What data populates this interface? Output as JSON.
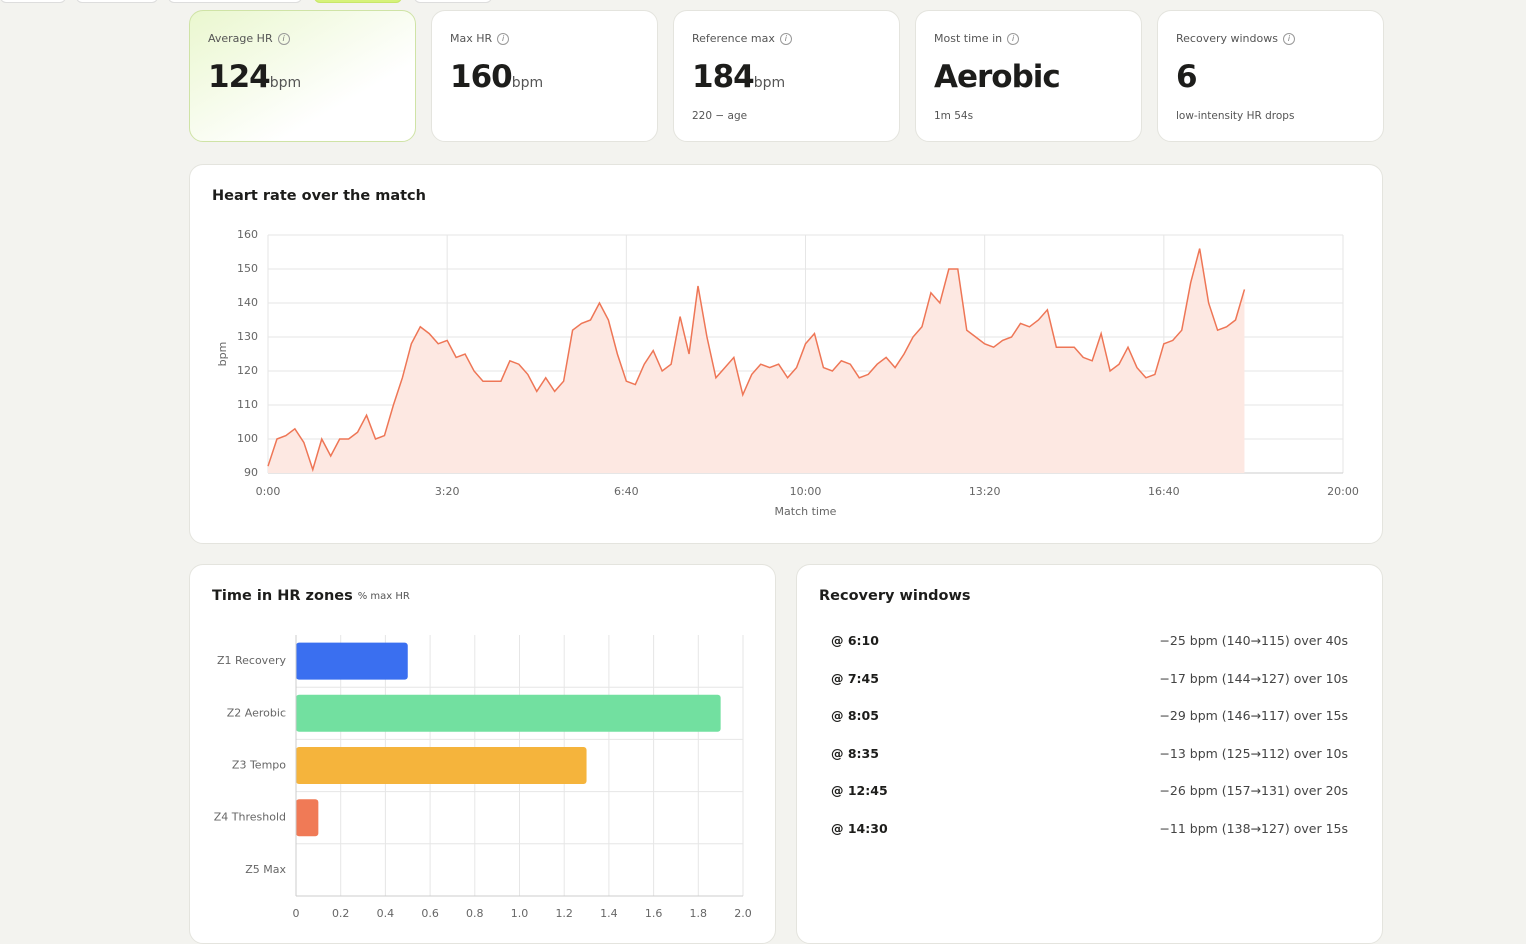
{
  "cards": [
    {
      "label": "Average HR",
      "value": 124,
      "unit": "bpm"
    },
    {
      "label": "Max HR",
      "value": 160,
      "unit": "bpm"
    },
    {
      "label": "Reference max",
      "value": 184,
      "unit": "bpm",
      "sub": "220 − age"
    },
    {
      "label": "Most time in",
      "value": "Aerobic",
      "sub": "1m 54s"
    },
    {
      "label": "Recovery windows",
      "value": 6,
      "sub": "low-intensity HR drops"
    }
  ],
  "chart_data": [
    {
      "type": "line",
      "title": "Heart rate over the match",
      "xlabel": "Match time",
      "ylabel": "bpm",
      "color": "#ee7656",
      "fill_color": "#fde8e2",
      "grid": true,
      "x": [
        0,
        10,
        20,
        30,
        40,
        50,
        60,
        70,
        80,
        90,
        100,
        110,
        120,
        130,
        140,
        150,
        160,
        170,
        180,
        190,
        200,
        210,
        220,
        230,
        240,
        250,
        260,
        270,
        280,
        290,
        300,
        310,
        320,
        330,
        340,
        350,
        360,
        370,
        380,
        390,
        400,
        410,
        420,
        430,
        440,
        450,
        460,
        470,
        480,
        490,
        500,
        510,
        520,
        530,
        540,
        550,
        560,
        570,
        580,
        590,
        600,
        610,
        620,
        630,
        640,
        650,
        660,
        670,
        680,
        690,
        700,
        710,
        720,
        730,
        740,
        750,
        760,
        770,
        780,
        790,
        800,
        810,
        820,
        830,
        840,
        850,
        860,
        870,
        880,
        890,
        900,
        910,
        920,
        930,
        940,
        950,
        960,
        970,
        980,
        990,
        1000,
        1010,
        1020,
        1030,
        1040,
        1050,
        1060,
        1070,
        1080,
        1090
      ],
      "series": [
        {
          "values": [
            92,
            100,
            101,
            103,
            99,
            91,
            100,
            95,
            100,
            100,
            102,
            107,
            100,
            101,
            110,
            118,
            128,
            133,
            131,
            128,
            129,
            124,
            125,
            120,
            117,
            117,
            117,
            123,
            122,
            119,
            114,
            118,
            114,
            117,
            132,
            134,
            135,
            140,
            135,
            125,
            117,
            116,
            122,
            126,
            120,
            122,
            136,
            125,
            145,
            130,
            118,
            121,
            124,
            113,
            119,
            122,
            121,
            122,
            118,
            121,
            128,
            131,
            121,
            120,
            123,
            122,
            118,
            119,
            122,
            124,
            121,
            125,
            130,
            133,
            143,
            140,
            150,
            150,
            132,
            130,
            128,
            127,
            129,
            130,
            134,
            133,
            135,
            138,
            127,
            127,
            127,
            124,
            123,
            131,
            120,
            122,
            127,
            121,
            118,
            119,
            128,
            129,
            132,
            146,
            156,
            140,
            132,
            133,
            135,
            144
          ]
        }
      ],
      "xlim": [
        0,
        1200
      ],
      "xticks": [
        {
          "value": 0,
          "label": "0:00"
        },
        {
          "value": 200,
          "label": "3:20"
        },
        {
          "value": 400,
          "label": "6:40"
        },
        {
          "value": 600,
          "label": "10:00"
        },
        {
          "value": 800,
          "label": "13:20"
        },
        {
          "value": 1000,
          "label": "16:40"
        },
        {
          "value": 1200,
          "label": "20:00"
        }
      ],
      "ylim": [
        90,
        160
      ],
      "yticks": [
        90,
        100,
        110,
        120,
        130,
        140,
        150,
        160
      ]
    },
    {
      "type": "bar",
      "orientation": "horizontal",
      "title": "Time in HR zones",
      "subtitle": "% max HR",
      "grid": true,
      "categories": [
        "Z1 Recovery",
        "Z2 Aerobic",
        "Z3 Tempo",
        "Z4 Threshold",
        "Z5 Max"
      ],
      "values": [
        0.5,
        1.9,
        1.3,
        0.1,
        0
      ],
      "colors": [
        "#3a6ff0",
        "#72e0a0",
        "#f5b43c",
        "#f07a56",
        "#b03a5a"
      ],
      "xlim": [
        0,
        2
      ],
      "xticks": [
        0,
        0.2,
        0.4,
        0.6,
        0.8,
        {
          "value": 1,
          "label": "1.0"
        },
        1.2,
        1.4,
        1.6,
        1.8,
        {
          "value": 2,
          "label": "2.0"
        }
      ]
    }
  ],
  "recovery": {
    "title": "Recovery windows",
    "items": [
      {
        "time": "@ 6:10",
        "detail": "−25 bpm (140→115) over 40s"
      },
      {
        "time": "@ 7:45",
        "detail": "−17 bpm (144→127) over 10s"
      },
      {
        "time": "@ 8:05",
        "detail": "−29 bpm (146→117) over 15s"
      },
      {
        "time": "@ 8:35",
        "detail": "−13 bpm (125→112) over 10s"
      },
      {
        "time": "@ 12:45",
        "detail": "−26 bpm (157→131) over 20s"
      },
      {
        "time": "@ 14:30",
        "detail": "−11 bpm (138→127) over 15s"
      }
    ]
  }
}
